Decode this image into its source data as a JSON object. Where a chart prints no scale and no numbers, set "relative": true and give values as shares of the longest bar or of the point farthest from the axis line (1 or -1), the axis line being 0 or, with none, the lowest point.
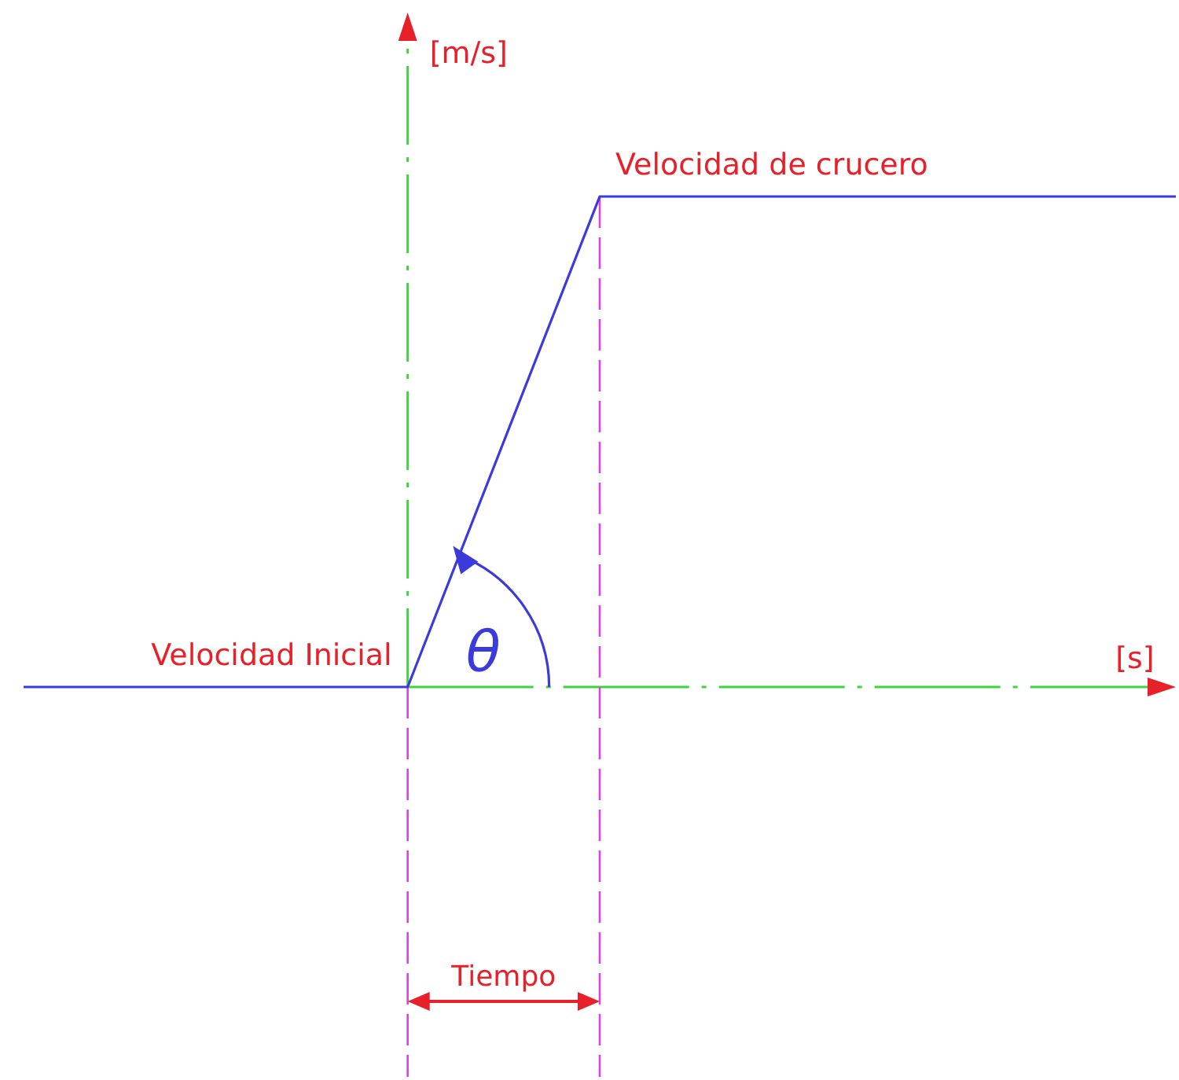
{
  "chart_data": {
    "type": "line",
    "relative": true,
    "xlabel": "[s]",
    "ylabel": "[m/s]",
    "categories": [
      null,
      null,
      null,
      null,
      null,
      null,
      null
    ],
    "series": [
      {
        "color": "#3b3bdc",
        "values": [
          0,
          0,
          0,
          1,
          1,
          1,
          1
        ]
      }
    ],
    "annotations": [
      "Velocidad de crucero",
      "Velocidad Inicial",
      "Tiempo",
      "θ"
    ],
    "marker": "none",
    "line_style": "solid"
  }
}
